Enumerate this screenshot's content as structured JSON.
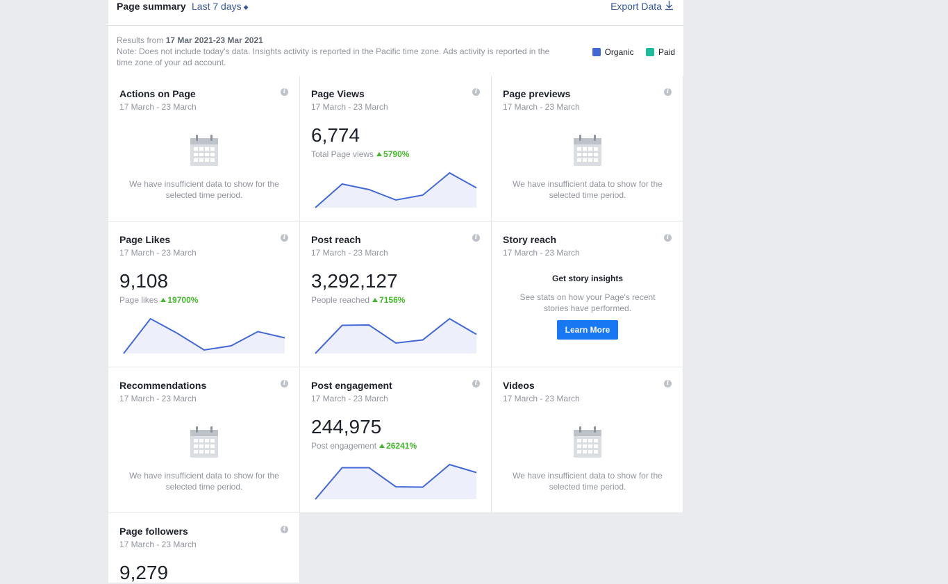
{
  "header": {
    "title": "Page summary",
    "range": "Last 7 days",
    "export": "Export Data"
  },
  "note": {
    "results_prefix": "Results from ",
    "results_range": "17 Mar 2021-23 Mar 2021",
    "desc": "Note: Does not include today's data. Insights activity is reported in the Pacific time zone. Ads activity is reported in the time zone of your ad account."
  },
  "legend": {
    "organic": "Organic",
    "paid": "Paid",
    "organic_color": "#4267d6",
    "paid_color": "#1fbc9c"
  },
  "insufficient": "We have insufficient data to show for the selected time period.",
  "cards": [
    {
      "title": "Actions on Page",
      "date": "17 March - 23 March"
    },
    {
      "title": "Page Views",
      "date": "17 March - 23 March",
      "value": "6,774",
      "label": "Total Page views",
      "delta": "5790%"
    },
    {
      "title": "Page previews",
      "date": "17 March - 23 March"
    },
    {
      "title": "Page Likes",
      "date": "17 March - 23 March",
      "value": "9,108",
      "label": "Page likes",
      "delta": "19700%"
    },
    {
      "title": "Post reach",
      "date": "17 March - 23 March",
      "value": "3,292,127",
      "label": "People reached",
      "delta": "7156%"
    },
    {
      "title": "Story reach",
      "date": "17 March - 23 March",
      "story_heading": "Get story insights",
      "story_desc": "See stats on how your Page's recent stories have performed.",
      "button": "Learn More"
    },
    {
      "title": "Recommendations",
      "date": "17 March - 23 March"
    },
    {
      "title": "Post engagement",
      "date": "17 March - 23 March",
      "value": "244,975",
      "label": "Post engagement",
      "delta": "26241%"
    },
    {
      "title": "Videos",
      "date": "17 March - 23 March"
    },
    {
      "title": "Page followers",
      "date": "17 March - 23 March",
      "value": "9,279"
    }
  ],
  "sparklines": {
    "page_views": [
      0,
      68,
      52,
      22,
      36,
      100,
      57
    ],
    "page_likes": [
      0,
      100,
      58,
      10,
      22,
      63,
      45
    ],
    "post_reach": [
      0,
      81,
      82,
      30,
      39,
      100,
      55
    ],
    "post_engagement": [
      0,
      91,
      91,
      36,
      35,
      100,
      77
    ]
  }
}
